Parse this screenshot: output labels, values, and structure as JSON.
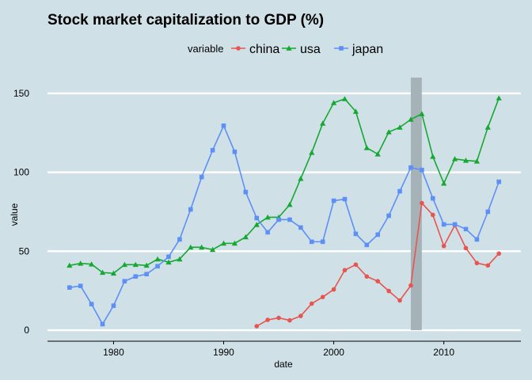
{
  "chart_data": {
    "type": "line",
    "title": "Stock market capitalization to GDP (%)",
    "xlabel": "date",
    "ylabel": "value",
    "legend_title": "variable",
    "legend_position": "top",
    "xlim": [
      1974,
      2017
    ],
    "ylim": [
      -7,
      160
    ],
    "x_ticks": [
      1980,
      1990,
      2000,
      2010
    ],
    "y_ticks": [
      0,
      50,
      100,
      150
    ],
    "grid": "horizontal",
    "highlight_band": {
      "x_start": 2007,
      "x_end": 2008,
      "color": "#a5b3b8"
    },
    "series": [
      {
        "name": "china",
        "color": "#e8544e",
        "marker": "circle",
        "x": [
          1993,
          1994,
          1995,
          1996,
          1997,
          1998,
          1999,
          2000,
          2001,
          2002,
          2003,
          2004,
          2005,
          2006,
          2007,
          2008,
          2009,
          2010,
          2011,
          2012,
          2013,
          2014,
          2015
        ],
        "values": [
          2.5,
          6.5,
          7.8,
          6.2,
          9.0,
          16.8,
          21.0,
          25.8,
          38.0,
          41.5,
          34.0,
          31.0,
          24.8,
          18.8,
          28.3,
          80.5,
          73.0,
          53.3,
          66.5,
          52.0,
          42.5,
          41.0,
          48.5
        ]
      },
      {
        "name": "usa",
        "color": "#16a833",
        "marker": "triangle",
        "x": [
          1976,
          1977,
          1978,
          1979,
          1980,
          1981,
          1982,
          1983,
          1984,
          1985,
          1986,
          1987,
          1988,
          1989,
          1990,
          1991,
          1992,
          1993,
          1994,
          1995,
          1996,
          1997,
          1998,
          1999,
          2000,
          2001,
          2002,
          2003,
          2004,
          2005,
          2006,
          2007,
          2008,
          2009,
          2010,
          2011,
          2012,
          2013,
          2014,
          2015
        ],
        "values": [
          41.0,
          42.3,
          41.8,
          36.5,
          36.0,
          41.5,
          41.5,
          41.0,
          45.0,
          43.0,
          45.0,
          52.5,
          52.5,
          51.0,
          55.0,
          55.0,
          59.0,
          66.8,
          71.5,
          71.5,
          79.5,
          96.0,
          112.5,
          131.0,
          144.0,
          146.5,
          138.5,
          115.5,
          111.5,
          125.5,
          128.5,
          133.5,
          137.0,
          110.0,
          93.0,
          108.5,
          107.5,
          107.0,
          128.5,
          147.0
        ]
      },
      {
        "name": "japan",
        "color": "#5d8ff5",
        "marker": "square",
        "x": [
          1976,
          1977,
          1978,
          1979,
          1980,
          1981,
          1982,
          1983,
          1984,
          1985,
          1986,
          1987,
          1988,
          1989,
          1990,
          1991,
          1992,
          1993,
          1994,
          1995,
          1996,
          1997,
          1998,
          1999,
          2000,
          2001,
          2002,
          2003,
          2004,
          2005,
          2006,
          2007,
          2008,
          2009,
          2010,
          2011,
          2012,
          2013,
          2014,
          2015
        ],
        "values": [
          27.0,
          28.0,
          16.5,
          3.8,
          15.5,
          31.0,
          34.0,
          35.5,
          40.5,
          46.5,
          57.5,
          76.5,
          97.0,
          114.0,
          129.5,
          113.0,
          87.5,
          71.0,
          62.0,
          70.0,
          70.0,
          65.0,
          56.0,
          56.0,
          82.0,
          83.0,
          61.0,
          54.0,
          60.5,
          72.5,
          88.0,
          103.0,
          101.5,
          83.5,
          67.0,
          67.0,
          64.0,
          57.5,
          75.0,
          94.0
        ]
      }
    ]
  }
}
